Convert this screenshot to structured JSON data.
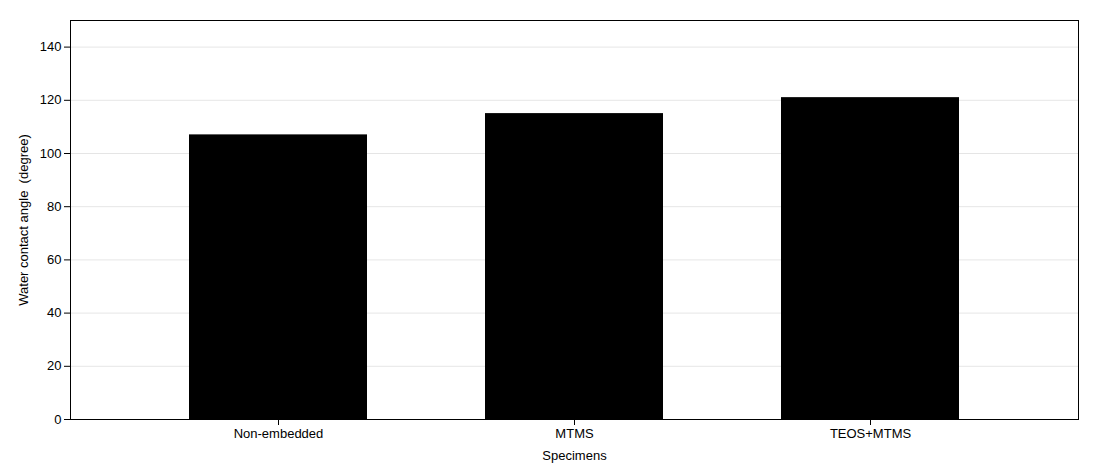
{
  "chart_data": {
    "type": "bar",
    "categories": [
      "Non-embedded",
      "MTMS",
      "TEOS+MTMS"
    ],
    "values": [
      107,
      115,
      121
    ],
    "xlabel": "Specimens",
    "ylabel": "Water contact angle  (degree)",
    "ylim": [
      0,
      150
    ],
    "yticks": [
      0,
      20,
      40,
      60,
      80,
      100,
      120,
      140
    ],
    "grid": true
  }
}
